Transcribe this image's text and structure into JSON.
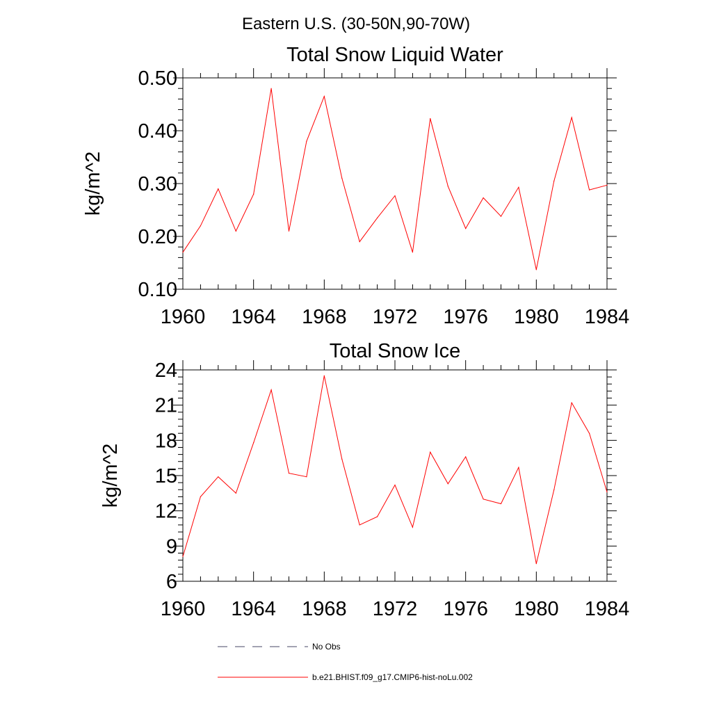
{
  "figure": {
    "suptitle": "Eastern U.S. (30-50N,90-70W)"
  },
  "chart_data": [
    {
      "type": "line",
      "title": "Total Snow Liquid Water",
      "xlabel": "",
      "ylabel": "kg/m^2",
      "xlim": [
        1960,
        1984
      ],
      "ylim": [
        0.1,
        0.5
      ],
      "xticks": [
        "1960",
        "1964",
        "1968",
        "1972",
        "1976",
        "1980",
        "1984"
      ],
      "yticks": [
        "0.10",
        "0.20",
        "0.30",
        "0.40",
        "0.50"
      ],
      "grid": false,
      "x": [
        1960,
        1961,
        1962,
        1963,
        1964,
        1965,
        1966,
        1967,
        1968,
        1969,
        1970,
        1971,
        1972,
        1973,
        1974,
        1975,
        1976,
        1977,
        1978,
        1979,
        1980,
        1981,
        1982,
        1983,
        1984
      ],
      "series": [
        {
          "name": "b.e21.BHIST.f09_g17.CMIP6-hist-noLu.002",
          "color": "#ff0000",
          "values": [
            0.17,
            0.22,
            0.29,
            0.21,
            0.28,
            0.48,
            0.21,
            0.38,
            0.465,
            0.31,
            0.19,
            0.235,
            0.277,
            0.17,
            0.423,
            0.295,
            0.215,
            0.273,
            0.238,
            0.293,
            0.137,
            0.305,
            0.425,
            0.288,
            0.297
          ]
        }
      ]
    },
    {
      "type": "line",
      "title": "Total Snow Ice",
      "xlabel": "",
      "ylabel": "kg/m^2",
      "xlim": [
        1960,
        1984
      ],
      "ylim": [
        6,
        24
      ],
      "xticks": [
        "1960",
        "1964",
        "1968",
        "1972",
        "1976",
        "1980",
        "1984"
      ],
      "yticks": [
        "6",
        "9",
        "12",
        "15",
        "18",
        "21",
        "24"
      ],
      "grid": false,
      "x": [
        1960,
        1961,
        1962,
        1963,
        1964,
        1965,
        1966,
        1967,
        1968,
        1969,
        1970,
        1971,
        1972,
        1973,
        1974,
        1975,
        1976,
        1977,
        1978,
        1979,
        1980,
        1981,
        1982,
        1983,
        1984
      ],
      "series": [
        {
          "name": "b.e21.BHIST.f09_g17.CMIP6-hist-noLu.002",
          "color": "#ff0000",
          "values": [
            8.1,
            13.2,
            14.9,
            13.5,
            17.8,
            22.3,
            15.2,
            14.9,
            23.5,
            16.4,
            10.8,
            11.5,
            14.2,
            10.6,
            17.0,
            14.3,
            16.6,
            13.0,
            12.6,
            15.7,
            7.5,
            13.8,
            21.2,
            18.6,
            13.6
          ]
        }
      ]
    }
  ],
  "legend": {
    "position": "bottom",
    "items": [
      {
        "label": "No Obs",
        "style": "dashed",
        "color": "#444466"
      },
      {
        "label": "b.e21.BHIST.f09_g17.CMIP6-hist-noLu.002",
        "style": "solid",
        "color": "#ff0000"
      }
    ]
  }
}
